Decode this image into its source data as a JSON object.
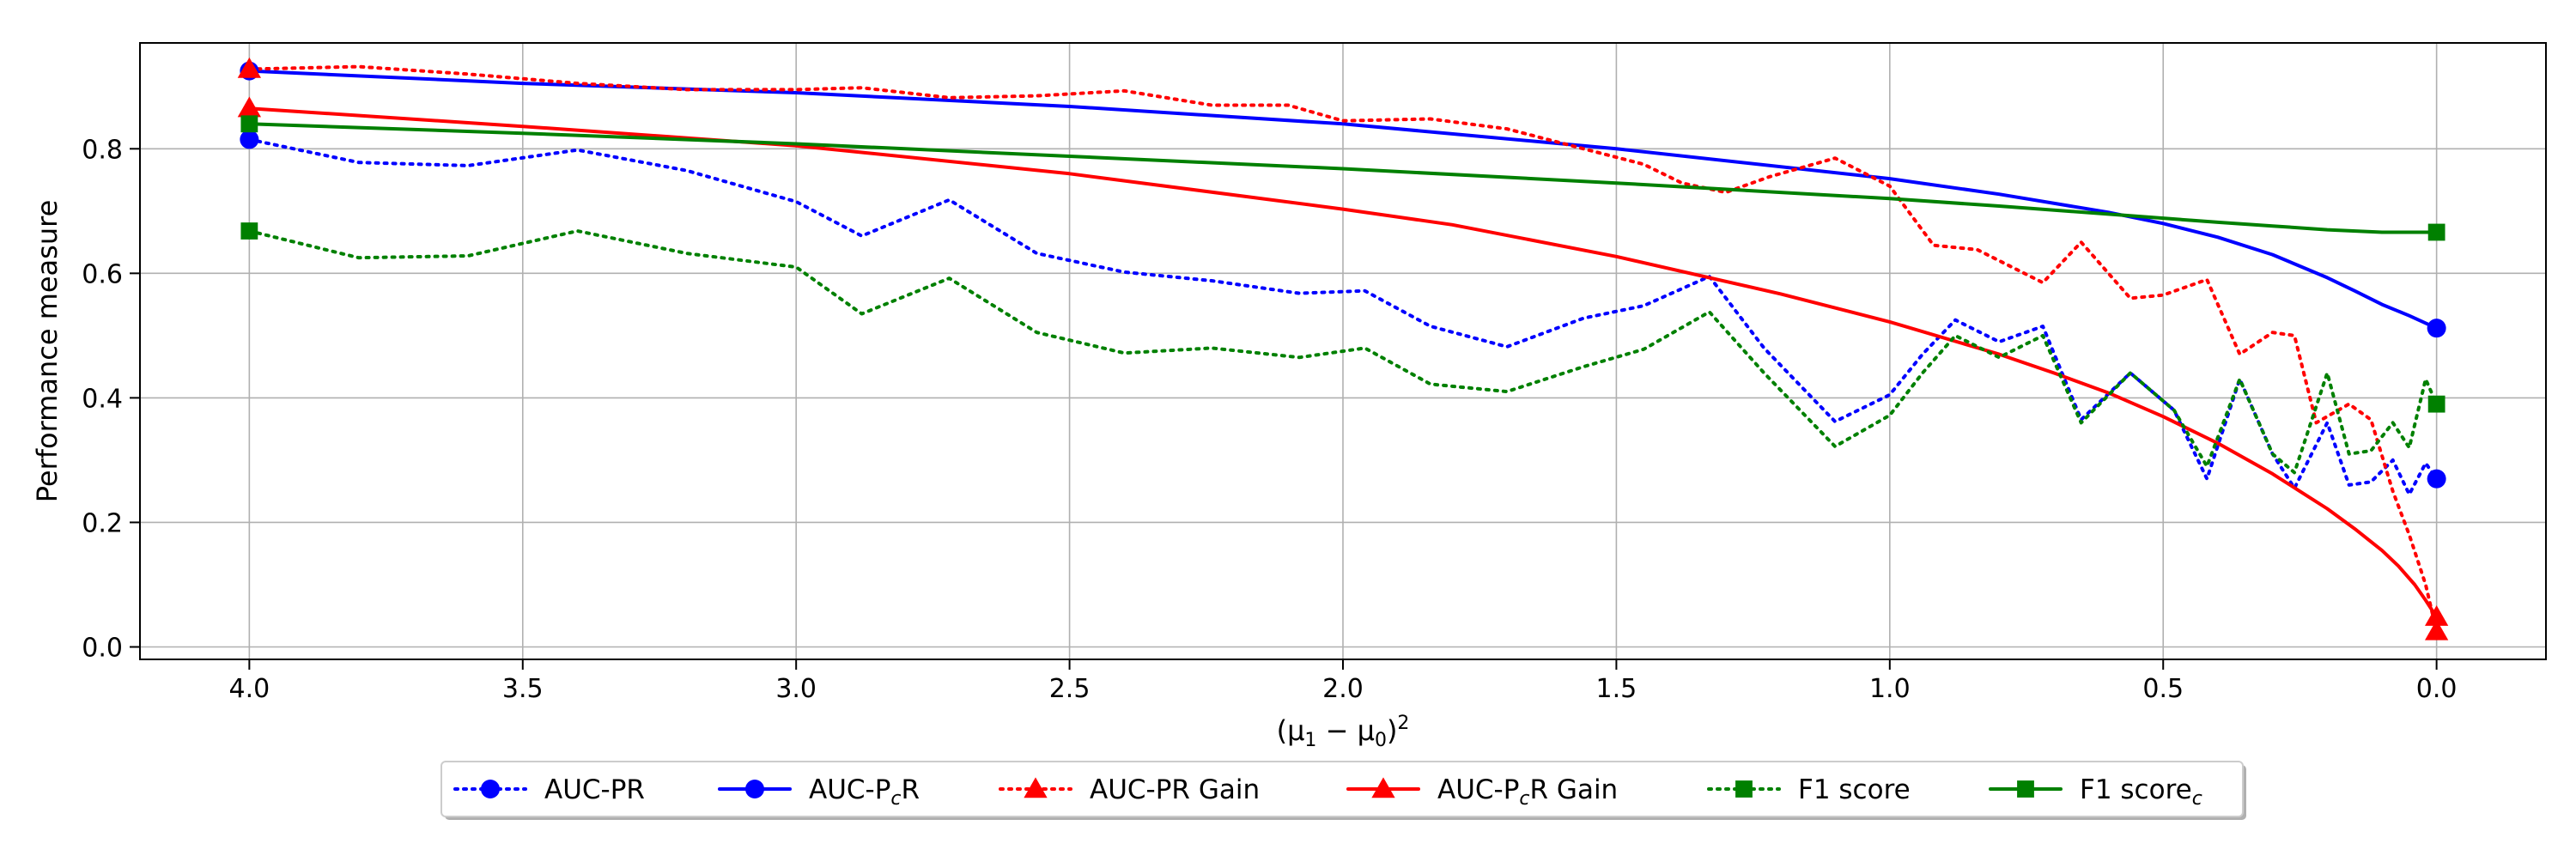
{
  "chart_data": {
    "type": "line",
    "xlabel_parts": [
      "(μ",
      "1",
      " − μ",
      "0",
      ")",
      "2"
    ],
    "ylabel": "Performance measure",
    "title": "",
    "xlim": [
      4.2,
      -0.2
    ],
    "ylim": [
      -0.02,
      0.97
    ],
    "x_reversed": true,
    "grid": true,
    "legend_position": "bottom-center",
    "xticks": [
      4.0,
      3.5,
      3.0,
      2.5,
      2.0,
      1.5,
      1.0,
      0.5,
      0.0
    ],
    "xtick_labels": [
      "4.0",
      "3.5",
      "3.0",
      "2.5",
      "2.0",
      "1.5",
      "1.0",
      "0.5",
      "0.0"
    ],
    "yticks": [
      0.0,
      0.2,
      0.4,
      0.6,
      0.8
    ],
    "ytick_labels": [
      "0.0",
      "0.2",
      "0.4",
      "0.6",
      "0.8"
    ],
    "series": [
      {
        "id": "auc_pr",
        "name": "AUC-PR",
        "color": "#0000ff",
        "dash": "dotted",
        "marker": "circle",
        "x": [
          4.0,
          3.8,
          3.6,
          3.4,
          3.2,
          3.0,
          2.88,
          2.72,
          2.56,
          2.4,
          2.24,
          2.08,
          1.96,
          1.84,
          1.7,
          1.56,
          1.45,
          1.33,
          1.23,
          1.1,
          1.0,
          0.94,
          0.88,
          0.8,
          0.72,
          0.65,
          0.56,
          0.48,
          0.42,
          0.36,
          0.3,
          0.26,
          0.2,
          0.16,
          0.12,
          0.08,
          0.05,
          0.02,
          0.0
        ],
        "y": [
          0.815,
          0.778,
          0.773,
          0.798,
          0.765,
          0.715,
          0.66,
          0.718,
          0.632,
          0.602,
          0.588,
          0.568,
          0.572,
          0.515,
          0.482,
          0.528,
          0.548,
          0.595,
          0.48,
          0.362,
          0.405,
          0.47,
          0.525,
          0.49,
          0.515,
          0.365,
          0.44,
          0.38,
          0.27,
          0.43,
          0.31,
          0.255,
          0.36,
          0.26,
          0.265,
          0.3,
          0.245,
          0.295,
          0.27
        ],
        "marker_x": [
          4.0,
          0.0
        ],
        "marker_y": [
          0.815,
          0.27
        ]
      },
      {
        "id": "auc_pcr",
        "name_base": "AUC-P",
        "name_sub": "c",
        "name_tail": "R",
        "color": "#0000ff",
        "dash": "solid",
        "marker": "circle",
        "x": [
          4.0,
          3.5,
          3.0,
          2.5,
          2.0,
          1.5,
          1.0,
          0.8,
          0.6,
          0.5,
          0.4,
          0.3,
          0.2,
          0.15,
          0.1,
          0.05,
          0.0
        ],
        "y": [
          0.925,
          0.905,
          0.89,
          0.868,
          0.84,
          0.8,
          0.752,
          0.727,
          0.698,
          0.68,
          0.658,
          0.63,
          0.593,
          0.572,
          0.55,
          0.532,
          0.512
        ],
        "marker_x": [
          4.0,
          0.0
        ],
        "marker_y": [
          0.925,
          0.512
        ]
      },
      {
        "id": "auc_pr_gain",
        "name": "AUC-PR Gain",
        "color": "#ff0000",
        "dash": "dotted",
        "marker": "triangle",
        "x": [
          4.0,
          3.8,
          3.6,
          3.4,
          3.2,
          3.0,
          2.88,
          2.72,
          2.56,
          2.4,
          2.24,
          2.1,
          2.0,
          1.84,
          1.7,
          1.56,
          1.45,
          1.38,
          1.3,
          1.22,
          1.1,
          1.0,
          0.92,
          0.84,
          0.72,
          0.65,
          0.56,
          0.5,
          0.42,
          0.36,
          0.3,
          0.26,
          0.22,
          0.16,
          0.12,
          0.08,
          0.05,
          0.02,
          0.0
        ],
        "y": [
          0.928,
          0.932,
          0.92,
          0.905,
          0.895,
          0.895,
          0.898,
          0.882,
          0.885,
          0.893,
          0.87,
          0.87,
          0.845,
          0.848,
          0.832,
          0.8,
          0.775,
          0.745,
          0.73,
          0.755,
          0.785,
          0.74,
          0.645,
          0.638,
          0.585,
          0.65,
          0.56,
          0.565,
          0.59,
          0.47,
          0.505,
          0.5,
          0.36,
          0.39,
          0.365,
          0.25,
          0.18,
          0.1,
          0.025
        ],
        "marker_x": [
          4.0,
          0.0
        ],
        "marker_y": [
          0.928,
          0.025
        ]
      },
      {
        "id": "auc_pcr_gain",
        "name_base": "AUC-P",
        "name_sub": "c",
        "name_tail": "R Gain",
        "color": "#ff0000",
        "dash": "solid",
        "marker": "triangle",
        "x": [
          4.0,
          3.5,
          3.0,
          2.5,
          2.0,
          1.8,
          1.5,
          1.2,
          1.0,
          0.8,
          0.7,
          0.6,
          0.5,
          0.4,
          0.3,
          0.25,
          0.2,
          0.15,
          0.1,
          0.07,
          0.04,
          0.02,
          0.0
        ],
        "y": [
          0.865,
          0.836,
          0.805,
          0.76,
          0.703,
          0.678,
          0.627,
          0.567,
          0.522,
          0.47,
          0.44,
          0.408,
          0.37,
          0.327,
          0.278,
          0.25,
          0.222,
          0.19,
          0.155,
          0.13,
          0.1,
          0.075,
          0.048
        ],
        "marker_x": [
          4.0,
          0.0
        ],
        "marker_y": [
          0.865,
          0.048
        ]
      },
      {
        "id": "f1_score",
        "name": "F1 score",
        "color": "#008000",
        "dash": "dotted",
        "marker": "square",
        "x": [
          4.0,
          3.8,
          3.6,
          3.4,
          3.2,
          3.0,
          2.88,
          2.72,
          2.56,
          2.4,
          2.24,
          2.08,
          1.96,
          1.84,
          1.7,
          1.56,
          1.45,
          1.33,
          1.23,
          1.1,
          1.0,
          0.94,
          0.88,
          0.8,
          0.72,
          0.65,
          0.56,
          0.48,
          0.42,
          0.36,
          0.3,
          0.26,
          0.2,
          0.16,
          0.12,
          0.08,
          0.05,
          0.02,
          0.0
        ],
        "y": [
          0.668,
          0.625,
          0.628,
          0.668,
          0.632,
          0.61,
          0.535,
          0.592,
          0.505,
          0.472,
          0.48,
          0.465,
          0.48,
          0.422,
          0.41,
          0.45,
          0.478,
          0.538,
          0.44,
          0.322,
          0.372,
          0.44,
          0.5,
          0.465,
          0.5,
          0.36,
          0.44,
          0.38,
          0.29,
          0.43,
          0.31,
          0.28,
          0.44,
          0.31,
          0.315,
          0.36,
          0.32,
          0.43,
          0.39
        ],
        "marker_x": [
          4.0,
          0.0
        ],
        "marker_y": [
          0.668,
          0.39
        ]
      },
      {
        "id": "f1_score_c",
        "name_base": "F1 score",
        "name_sub": "c",
        "name_tail": "",
        "color": "#008000",
        "dash": "solid",
        "marker": "square",
        "x": [
          4.0,
          3.5,
          3.0,
          2.5,
          2.0,
          1.5,
          1.0,
          0.8,
          0.6,
          0.4,
          0.3,
          0.2,
          0.1,
          0.0
        ],
        "y": [
          0.84,
          0.825,
          0.808,
          0.788,
          0.768,
          0.745,
          0.72,
          0.708,
          0.695,
          0.682,
          0.676,
          0.67,
          0.666,
          0.666
        ],
        "marker_x": [
          4.0,
          0.0
        ],
        "marker_y": [
          0.84,
          0.666
        ]
      }
    ]
  }
}
